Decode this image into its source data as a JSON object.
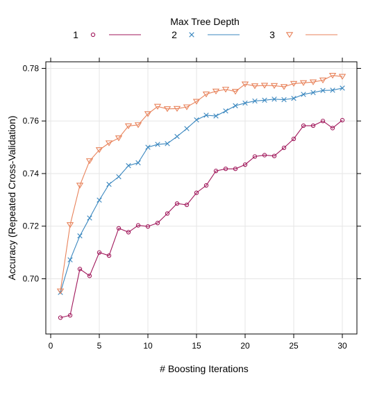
{
  "chart_data": {
    "type": "line",
    "title": "",
    "legend": {
      "title": "Max Tree Depth",
      "placement": "top",
      "entries": [
        "1",
        "2",
        "3"
      ]
    },
    "xlabel": "# Boosting Iterations",
    "ylabel": "Accuracy (Repeated Cross-Validation)",
    "xlim": [
      -0.5,
      31.5
    ],
    "ylim": [
      0.679,
      0.7825
    ],
    "xticks": [
      0,
      5,
      10,
      15,
      20,
      25,
      30
    ],
    "yticks": [
      0.7,
      0.72,
      0.74,
      0.76,
      0.78
    ],
    "ytick_labels": [
      "0.70",
      "0.72",
      "0.74",
      "0.76",
      "0.78"
    ],
    "grid": true,
    "x": [
      1,
      2,
      3,
      4,
      5,
      6,
      7,
      8,
      9,
      10,
      11,
      12,
      13,
      14,
      15,
      16,
      17,
      18,
      19,
      20,
      21,
      22,
      23,
      24,
      25,
      26,
      27,
      28,
      29,
      30
    ],
    "series": [
      {
        "name": "1",
        "color": "#a0165a",
        "marker": "circle",
        "values": [
          0.6852,
          0.6861,
          0.7037,
          0.7011,
          0.71,
          0.7088,
          0.7192,
          0.7177,
          0.7203,
          0.7199,
          0.7212,
          0.7248,
          0.7286,
          0.7281,
          0.7327,
          0.7355,
          0.741,
          0.7418,
          0.7418,
          0.7434,
          0.7465,
          0.747,
          0.7467,
          0.7498,
          0.7532,
          0.7582,
          0.7582,
          0.76,
          0.7573,
          0.7603
        ]
      },
      {
        "name": "2",
        "color": "#3a87bf",
        "marker": "cross",
        "values": [
          0.6948,
          0.7072,
          0.7163,
          0.7231,
          0.7299,
          0.7359,
          0.7388,
          0.743,
          0.7441,
          0.75,
          0.7511,
          0.7514,
          0.7541,
          0.7571,
          0.7604,
          0.7622,
          0.7619,
          0.7638,
          0.7658,
          0.7668,
          0.7676,
          0.7679,
          0.7683,
          0.7681,
          0.7686,
          0.7701,
          0.7708,
          0.7716,
          0.7717,
          0.7725
        ]
      },
      {
        "name": "3",
        "color": "#e8825a",
        "marker": "triangle-down",
        "values": [
          0.6953,
          0.7205,
          0.7355,
          0.7448,
          0.749,
          0.7516,
          0.7535,
          0.7581,
          0.7585,
          0.7627,
          0.7655,
          0.7646,
          0.7647,
          0.7653,
          0.7674,
          0.7702,
          0.7713,
          0.772,
          0.7712,
          0.774,
          0.7733,
          0.7735,
          0.7734,
          0.773,
          0.7742,
          0.7745,
          0.7748,
          0.7755,
          0.7773,
          0.7769
        ]
      }
    ]
  }
}
